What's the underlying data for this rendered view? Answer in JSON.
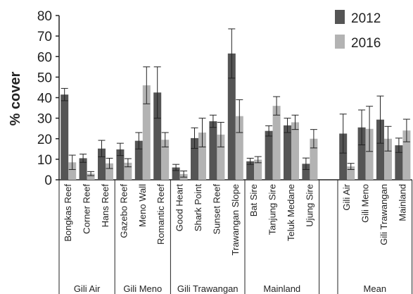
{
  "chart_data": {
    "type": "bar",
    "title": "",
    "xlabel": "",
    "ylabel": "% cover",
    "ylim": [
      0,
      80
    ],
    "yticks": [
      0,
      10,
      20,
      30,
      40,
      50,
      60,
      70,
      80
    ],
    "grid": false,
    "legend_position": "top-right",
    "categories": [
      "Bongkas Reef",
      "Corner Reef",
      "Hans Reef",
      "Gazebo Reef",
      "Meno Wall",
      "Romantic Reef",
      "Good Heart",
      "Shark Point",
      "Sunset Reef",
      "Trawangan Slope",
      "Bat Sire",
      "Tanjung Sire",
      "Teluk Medane",
      "Ujung Sire",
      "",
      "Gili Air",
      "Gili Meno",
      "Gili Trawangan",
      "Mainland"
    ],
    "groups": [
      {
        "label": "Gili Air",
        "categories": [
          "Bongkas Reef",
          "Corner Reef",
          "Hans Reef"
        ]
      },
      {
        "label": "Gili Meno",
        "categories": [
          "Gazebo Reef",
          "Meno Wall",
          "Romantic Reef"
        ]
      },
      {
        "label": "Gili Trawangan",
        "categories": [
          "Good Heart",
          "Shark Point",
          "Sunset Reef",
          "Trawangan Slope"
        ]
      },
      {
        "label": "Mainland",
        "categories": [
          "Bat Sire",
          "Tanjung Sire",
          "Teluk Medane",
          "Ujung Sire"
        ]
      },
      {
        "label": "Mean",
        "categories": [
          "Gili Air",
          "Gili Meno",
          "Gili Trawangan",
          "Mainland"
        ]
      }
    ],
    "series": [
      {
        "name": "2012",
        "color": "#555555",
        "values": [
          41.5,
          10.5,
          15.2,
          14.8,
          19.0,
          42.5,
          6.0,
          20.3,
          28.5,
          61.5,
          9.0,
          23.8,
          26.5,
          7.8,
          null,
          22.5,
          25.5,
          29.3,
          16.8
        ],
        "errors": [
          3.0,
          2.0,
          4.0,
          3.0,
          4.0,
          12.5,
          1.5,
          5.0,
          3.0,
          12.0,
          1.5,
          2.5,
          3.5,
          2.8,
          null,
          9.5,
          8.5,
          11.5,
          3.5
        ]
      },
      {
        "name": "2016",
        "color": "#b3b3b3",
        "values": [
          8.5,
          3.0,
          8.0,
          8.3,
          46.0,
          19.5,
          2.8,
          23.0,
          22.0,
          31.0,
          9.8,
          36.0,
          28.0,
          20.0,
          null,
          6.5,
          24.8,
          20.0,
          24.0
        ],
        "errors": [
          3.5,
          1.0,
          2.5,
          2.0,
          9.0,
          3.5,
          1.5,
          7.0,
          6.0,
          8.0,
          1.5,
          4.5,
          3.5,
          4.5,
          null,
          1.5,
          11.0,
          6.0,
          5.5
        ]
      }
    ]
  }
}
